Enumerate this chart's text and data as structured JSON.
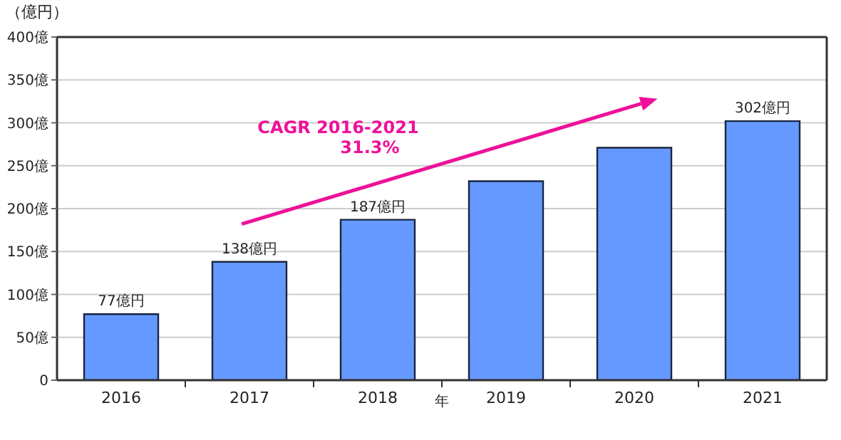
{
  "chart_data": {
    "type": "bar",
    "ylabel": "（億円）",
    "xlabel": "年",
    "categories": [
      "2016",
      "2017",
      "2018",
      "2019",
      "2020",
      "2021"
    ],
    "values": [
      77,
      138,
      187,
      232,
      271,
      302
    ],
    "value_labels": [
      "77億円",
      "138億円",
      "187億円",
      null,
      null,
      "302億円"
    ],
    "color": "#6699ff",
    "ylim": [
      0,
      400
    ],
    "yticks": [
      0,
      {
        "value": 50,
        "label": "50億"
      },
      {
        "value": 100,
        "label": "100億"
      },
      {
        "value": 150,
        "label": "150億"
      },
      {
        "value": 200,
        "label": "200億"
      },
      {
        "value": 250,
        "label": "250億"
      },
      {
        "value": 300,
        "label": "300億"
      },
      {
        "value": 350,
        "label": "350億"
      },
      {
        "value": 400,
        "label": "400億"
      }
    ],
    "grid": "y",
    "annotations": [
      "CAGR 2016-2021\n31.3%"
    ]
  }
}
